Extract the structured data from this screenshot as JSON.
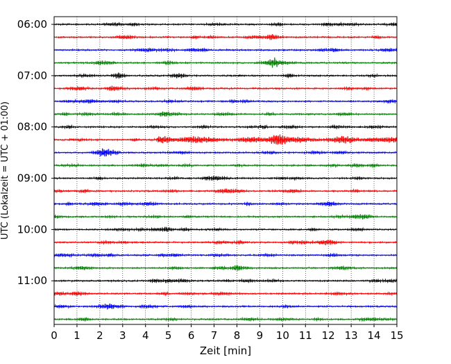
{
  "chart_data": {
    "type": "line",
    "chart_kind": "helicorder",
    "xlabel": "Zeit  [min]",
    "ylabel": "UTC (Lokalzeit = UTC + 01:00)",
    "xlim": [
      0,
      15
    ],
    "x_ticks": [
      0,
      1,
      2,
      3,
      4,
      5,
      6,
      7,
      8,
      9,
      10,
      11,
      12,
      13,
      14,
      15
    ],
    "y_tick_labels": [
      "06:00",
      "07:00",
      "08:00",
      "09:00",
      "10:00",
      "11:00"
    ],
    "y_start_time": "06:00",
    "y_end_time": "12:00",
    "trace_interval_min": 15,
    "trace_count": 24,
    "grid": "vertical dotted at each minute",
    "trace_colors": [
      "#000000",
      "#ff0000",
      "#0000ff",
      "#008000"
    ],
    "events": [
      {
        "trace_start": "08:15",
        "start_min": 4.5,
        "peak_min": 9.8,
        "end_min": 15,
        "note": "largest amplitude burst"
      }
    ]
  }
}
